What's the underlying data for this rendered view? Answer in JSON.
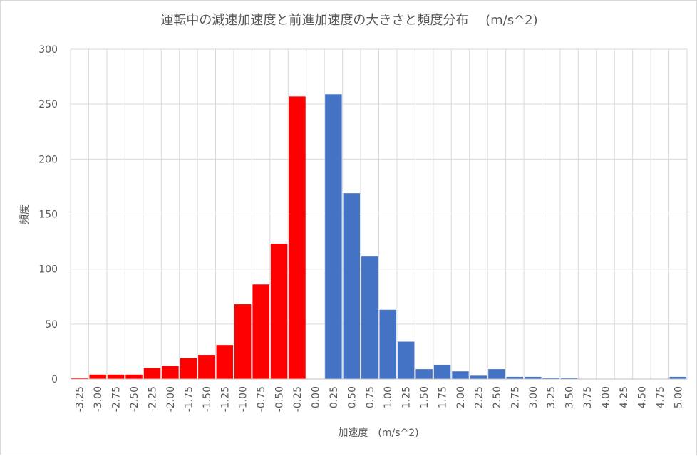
{
  "chart_data": {
    "type": "bar",
    "title": "運転中の減速加速度と前進加速度の大きさと頻度分布　 (m/s^2)",
    "xlabel": "加速度　(m/s^2)",
    "ylabel": "頻度",
    "ylim": [
      0,
      300
    ],
    "yticks": [
      "0",
      "50",
      "100",
      "150",
      "200",
      "250",
      "300"
    ],
    "categories": [
      "-3.25",
      "-3.00",
      "-2.75",
      "-2.50",
      "-2.25",
      "-2.00",
      "-1.75",
      "-1.50",
      "-1.25",
      "-1.00",
      "-0.75",
      "-0.50",
      "-0.25",
      "0.00",
      "0.25",
      "0.50",
      "0.75",
      "1.00",
      "1.25",
      "1.50",
      "1.75",
      "2.00",
      "2.25",
      "2.50",
      "2.75",
      "3.00",
      "3.25",
      "3.50",
      "3.75",
      "4.00",
      "4.25",
      "4.50",
      "4.75",
      "5.00"
    ],
    "values": [
      1,
      4,
      4,
      4,
      10,
      12,
      19,
      22,
      31,
      68,
      86,
      123,
      257,
      0,
      259,
      169,
      112,
      63,
      34,
      9,
      13,
      7,
      3,
      9,
      2,
      2,
      1,
      1,
      0,
      0,
      0,
      0,
      0,
      2
    ],
    "bar_colors": [
      "#ff0000",
      "#ff0000",
      "#ff0000",
      "#ff0000",
      "#ff0000",
      "#ff0000",
      "#ff0000",
      "#ff0000",
      "#ff0000",
      "#ff0000",
      "#ff0000",
      "#ff0000",
      "#ff0000",
      "#ff0000",
      "#4472c4",
      "#4472c4",
      "#4472c4",
      "#4472c4",
      "#4472c4",
      "#4472c4",
      "#4472c4",
      "#4472c4",
      "#4472c4",
      "#4472c4",
      "#4472c4",
      "#4472c4",
      "#4472c4",
      "#4472c4",
      "#4472c4",
      "#4472c4",
      "#4472c4",
      "#4472c4",
      "#4472c4",
      "#4472c4"
    ],
    "colors": {
      "deceleration": "#ff0000",
      "acceleration": "#4472c4",
      "grid": "#d9d9d9",
      "text": "#595959"
    },
    "grid": true,
    "legend": "none"
  }
}
